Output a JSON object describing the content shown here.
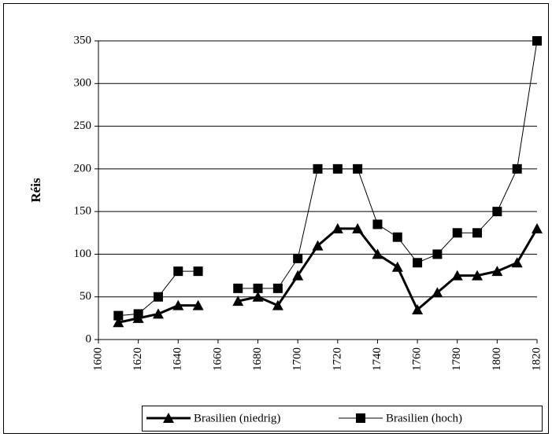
{
  "chart_data": {
    "type": "line",
    "ylabel": "Réis",
    "x": [
      1610,
      1620,
      1630,
      1640,
      1650,
      1660,
      1670,
      1680,
      1690,
      1700,
      1710,
      1720,
      1730,
      1740,
      1750,
      1760,
      1770,
      1780,
      1790,
      1800,
      1810,
      1820
    ],
    "series": [
      {
        "name": "Brasilien (niedrig)",
        "color": "#000000",
        "marker": "triangle",
        "width": 3,
        "values": [
          20,
          25,
          30,
          40,
          40,
          null,
          45,
          50,
          40,
          75,
          110,
          130,
          130,
          100,
          85,
          35,
          55,
          75,
          75,
          80,
          90,
          130
        ]
      },
      {
        "name": "Brasilien (hoch)",
        "color": "#000000",
        "marker": "square",
        "width": 1,
        "values": [
          28,
          30,
          50,
          80,
          80,
          null,
          60,
          60,
          60,
          95,
          200,
          200,
          200,
          135,
          120,
          90,
          100,
          125,
          125,
          150,
          200,
          350
        ]
      }
    ],
    "xlim": [
      1600,
      1820
    ],
    "xticks": [
      1600,
      1620,
      1640,
      1660,
      1680,
      1700,
      1720,
      1740,
      1760,
      1780,
      1800,
      1820
    ],
    "ylim": [
      0,
      350
    ],
    "yticks": [
      0,
      50,
      100,
      150,
      200,
      250,
      300,
      350
    ],
    "grid": true,
    "legend": "bottom"
  }
}
